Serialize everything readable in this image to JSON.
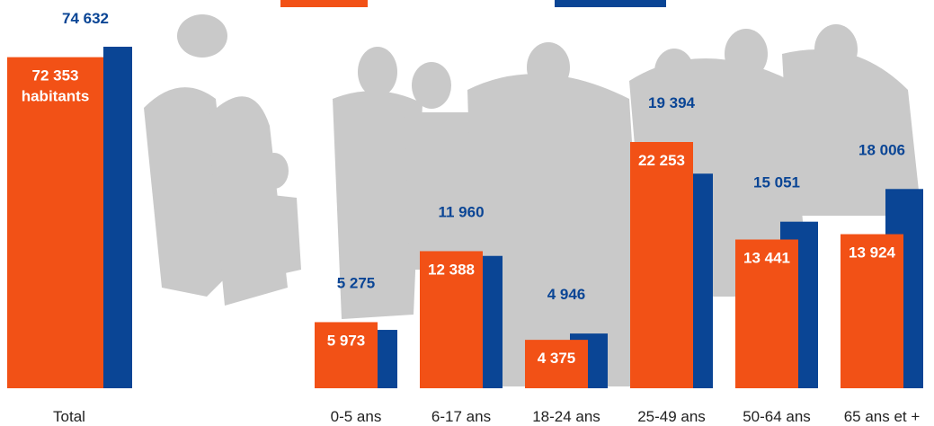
{
  "chart_data": {
    "type": "bar",
    "categories": [
      "Total",
      "0-5 ans",
      "6-17 ans",
      "18-24 ans",
      "25-49 ans",
      "50-64 ans",
      "65 ans et +"
    ],
    "series": [
      {
        "color": "#f25116",
        "values": [
          72353,
          5973,
          12388,
          4375,
          22253,
          13441,
          13924
        ],
        "value_labels": [
          "72 353 habitants",
          "5 973",
          "12 388",
          "4 375",
          "22 253",
          "13 441",
          "13 924"
        ]
      },
      {
        "color": "#0a4595",
        "values": [
          74632,
          5275,
          11960,
          4946,
          19394,
          15051,
          18006
        ],
        "value_labels": [
          "74 632",
          "5 275",
          "11 960",
          "4 946",
          "19 394",
          "15 051",
          "18 006"
        ]
      }
    ]
  }
}
